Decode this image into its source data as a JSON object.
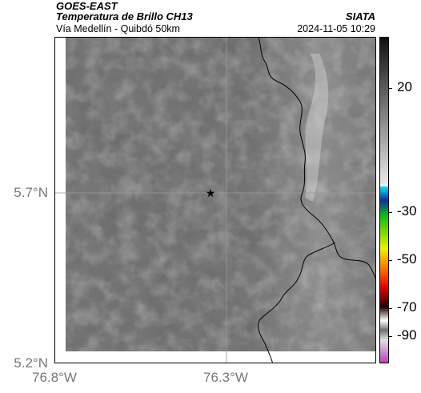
{
  "header": {
    "satellite": "GOES-EAST",
    "product": "Temperatura de Brillo CH13",
    "route": "Vía Medellín - Quibdó 50km",
    "agency": "SIATA",
    "datetime": "2024-11-05 10:29"
  },
  "map": {
    "lat_ticks": [
      "5.7°N",
      "5.2°N"
    ],
    "lon_ticks": [
      "76.8°W",
      "76.3°W"
    ],
    "marker": "star-marker"
  },
  "colorbar": {
    "labels": [
      "20",
      "-30",
      "-50",
      "-70",
      "-90"
    ],
    "colors": {
      "cyan": "#00e0ff",
      "blue": "#1030a0",
      "green": "#10c010",
      "yellow": "#f0f000",
      "orange": "#ff6000",
      "red": "#e00000",
      "dark": "#200000",
      "magenta": "#c040c0"
    }
  }
}
